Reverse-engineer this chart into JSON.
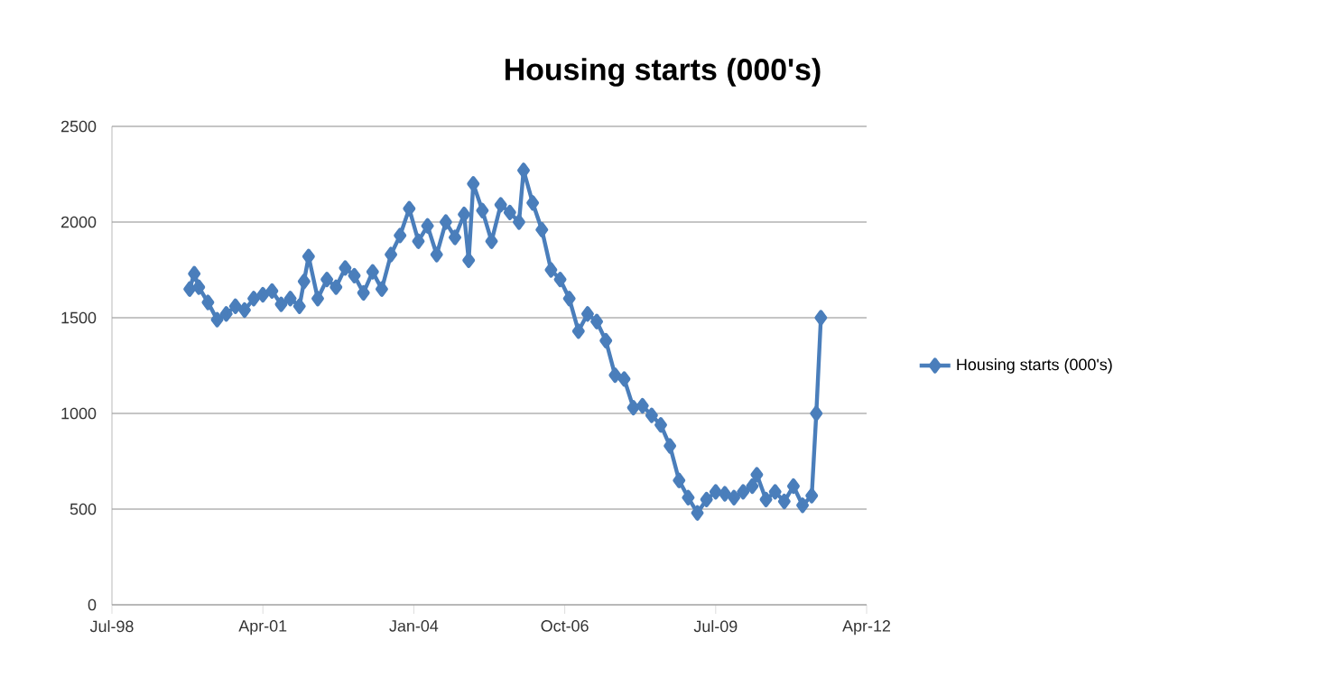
{
  "chart_data": {
    "type": "line",
    "title": "Housing starts (000's)",
    "x": [
      "1999-12",
      "2000-01",
      "2000-02",
      "2000-04",
      "2000-06",
      "2000-08",
      "2000-10",
      "2000-12",
      "2001-02",
      "2001-04",
      "2001-06",
      "2001-08",
      "2001-10",
      "2001-12",
      "2002-01",
      "2002-02",
      "2002-04",
      "2002-06",
      "2002-08",
      "2002-10",
      "2002-12",
      "2003-02",
      "2003-04",
      "2003-06",
      "2003-08",
      "2003-10",
      "2003-12",
      "2004-02",
      "2004-04",
      "2004-06",
      "2004-08",
      "2004-10",
      "2004-12",
      "2005-01",
      "2005-02",
      "2005-04",
      "2005-06",
      "2005-08",
      "2005-10",
      "2005-12",
      "2006-01",
      "2006-03",
      "2006-05",
      "2006-07",
      "2006-09",
      "2006-11",
      "2007-01",
      "2007-03",
      "2007-05",
      "2007-07",
      "2007-09",
      "2007-11",
      "2008-01",
      "2008-03",
      "2008-05",
      "2008-07",
      "2008-09",
      "2008-11",
      "2009-01",
      "2009-03",
      "2009-05",
      "2009-07",
      "2009-09",
      "2009-11",
      "2010-01",
      "2010-03",
      "2010-04",
      "2010-06",
      "2010-08",
      "2010-10",
      "2010-12",
      "2011-02",
      "2011-04",
      "2011-05",
      "2011-06"
    ],
    "series": [
      {
        "name": "Housing starts (000's)",
        "color": "#4a7ebb",
        "values": [
          1650,
          1730,
          1660,
          1580,
          1490,
          1520,
          1560,
          1540,
          1600,
          1620,
          1640,
          1570,
          1600,
          1560,
          1690,
          1820,
          1600,
          1700,
          1660,
          1760,
          1720,
          1630,
          1740,
          1650,
          1830,
          1930,
          2070,
          1900,
          1980,
          1830,
          2000,
          1920,
          2040,
          1800,
          2200,
          2060,
          1900,
          2090,
          2050,
          2000,
          2270,
          2100,
          1960,
          1750,
          1700,
          1600,
          1430,
          1520,
          1480,
          1380,
          1200,
          1180,
          1030,
          1040,
          990,
          940,
          830,
          650,
          560,
          480,
          550,
          590,
          580,
          560,
          590,
          620,
          680,
          550,
          590,
          540,
          620,
          520,
          570,
          1000,
          1500
        ]
      }
    ],
    "xlim": [
      "1998-07",
      "2012-04"
    ],
    "xticks": [
      {
        "value": "1998-07",
        "label": "Jul-98"
      },
      {
        "value": "2001-04",
        "label": "Apr-01"
      },
      {
        "value": "2004-01",
        "label": "Jan-04"
      },
      {
        "value": "2006-10",
        "label": "Oct-06"
      },
      {
        "value": "2009-07",
        "label": "Jul-09"
      },
      {
        "value": "2012-04",
        "label": "Apr-12"
      }
    ],
    "ylim": [
      0,
      2500
    ],
    "yticks": [
      0,
      500,
      1000,
      1500,
      2000,
      2500
    ],
    "grid": "y",
    "legend": "right",
    "marker": "diamond",
    "line_style": "solid"
  }
}
